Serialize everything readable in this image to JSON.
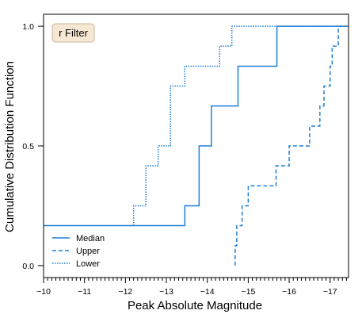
{
  "chart_data": {
    "type": "line",
    "annotation": "r Filter",
    "xlabel": "Peak Absolute Magnitude",
    "ylabel": "Cumulative Distribution Function",
    "xlim": [
      -10,
      -17.45
    ],
    "ylim": [
      -0.05,
      1.05
    ],
    "x_reversed": true,
    "x_ticks": [
      -10,
      -11,
      -12,
      -13,
      -14,
      -15,
      -16,
      -17
    ],
    "x_tick_labels": [
      "−10",
      "−11",
      "−12",
      "−13",
      "−14",
      "−15",
      "−16",
      "−17"
    ],
    "y_ticks": [
      0,
      0.5,
      1
    ],
    "y_tick_labels": [
      "0.0",
      "0.5",
      "1.0"
    ],
    "grid": false,
    "legend_position": "lower-left",
    "color": "#1f7fd6",
    "series": [
      {
        "name": "Median",
        "style": "solid",
        "x": [
          -10,
          -13.45,
          -13.45,
          -13.8,
          -13.8,
          -14.1,
          -14.1,
          -14.75,
          -14.75,
          -15.7,
          -15.7,
          -17.45
        ],
        "y": [
          0.167,
          0.167,
          0.25,
          0.25,
          0.5,
          0.5,
          0.667,
          0.667,
          0.833,
          0.833,
          1.0,
          1.0
        ]
      },
      {
        "name": "Upper",
        "style": "dashed",
        "x": [
          -14.68,
          -14.68,
          -14.72,
          -14.72,
          -14.85,
          -14.85,
          -15.0,
          -15.0,
          -15.68,
          -15.68,
          -16.0,
          -16.0,
          -16.5,
          -16.5,
          -16.75,
          -16.75,
          -16.85,
          -16.85,
          -17.0,
          -17.0,
          -17.05,
          -17.05,
          -17.2,
          -17.2,
          -17.4,
          -17.4
        ],
        "y": [
          0.0,
          0.083,
          0.083,
          0.167,
          0.167,
          0.25,
          0.25,
          0.333,
          0.333,
          0.417,
          0.417,
          0.5,
          0.5,
          0.583,
          0.583,
          0.667,
          0.667,
          0.75,
          0.75,
          0.833,
          0.833,
          0.917,
          0.917,
          1.0,
          1.0,
          1.0
        ]
      },
      {
        "name": "Lower",
        "style": "dotted",
        "x": [
          -12.2,
          -12.2,
          -12.5,
          -12.5,
          -12.8,
          -12.8,
          -13.1,
          -13.1,
          -13.45,
          -13.45,
          -14.3,
          -14.3,
          -14.6,
          -14.6,
          -17.45
        ],
        "y": [
          0.167,
          0.25,
          0.25,
          0.417,
          0.417,
          0.5,
          0.5,
          0.75,
          0.75,
          0.833,
          0.833,
          0.917,
          0.917,
          1.0,
          1.0
        ]
      }
    ]
  }
}
